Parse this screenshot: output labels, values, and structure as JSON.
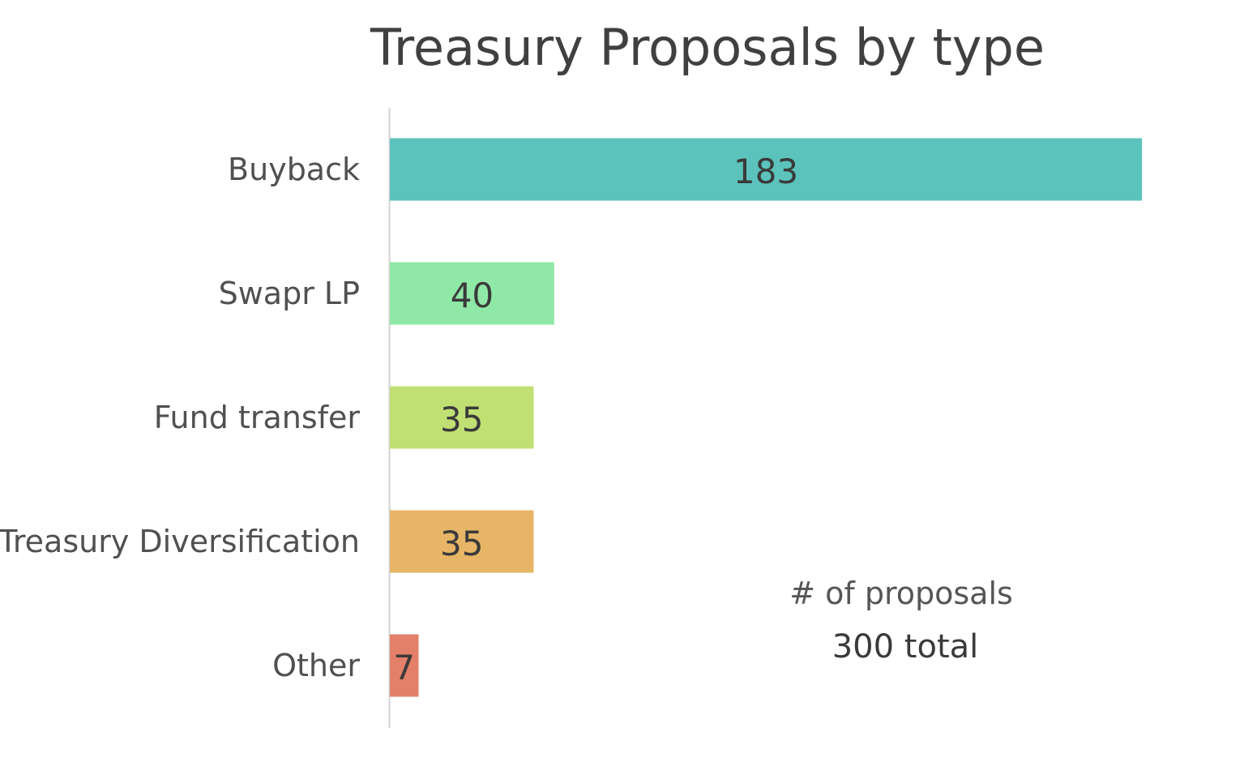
{
  "chart_data": {
    "type": "bar",
    "orientation": "horizontal",
    "title": "Treasury Proposals by type",
    "categories": [
      "Buyback",
      "Swapr LP",
      "Fund transfer",
      "Treasury Diversification",
      "Other"
    ],
    "values": [
      183,
      40,
      35,
      35,
      7
    ],
    "colors": [
      "#5bc3bb",
      "#90e8a6",
      "#c1e074",
      "#e6b566",
      "#e38069"
    ],
    "xlim": [
      0,
      183
    ],
    "grid": false,
    "legend": "none",
    "annotation": {
      "line1": "# of proposals",
      "line2": "300 total"
    }
  }
}
